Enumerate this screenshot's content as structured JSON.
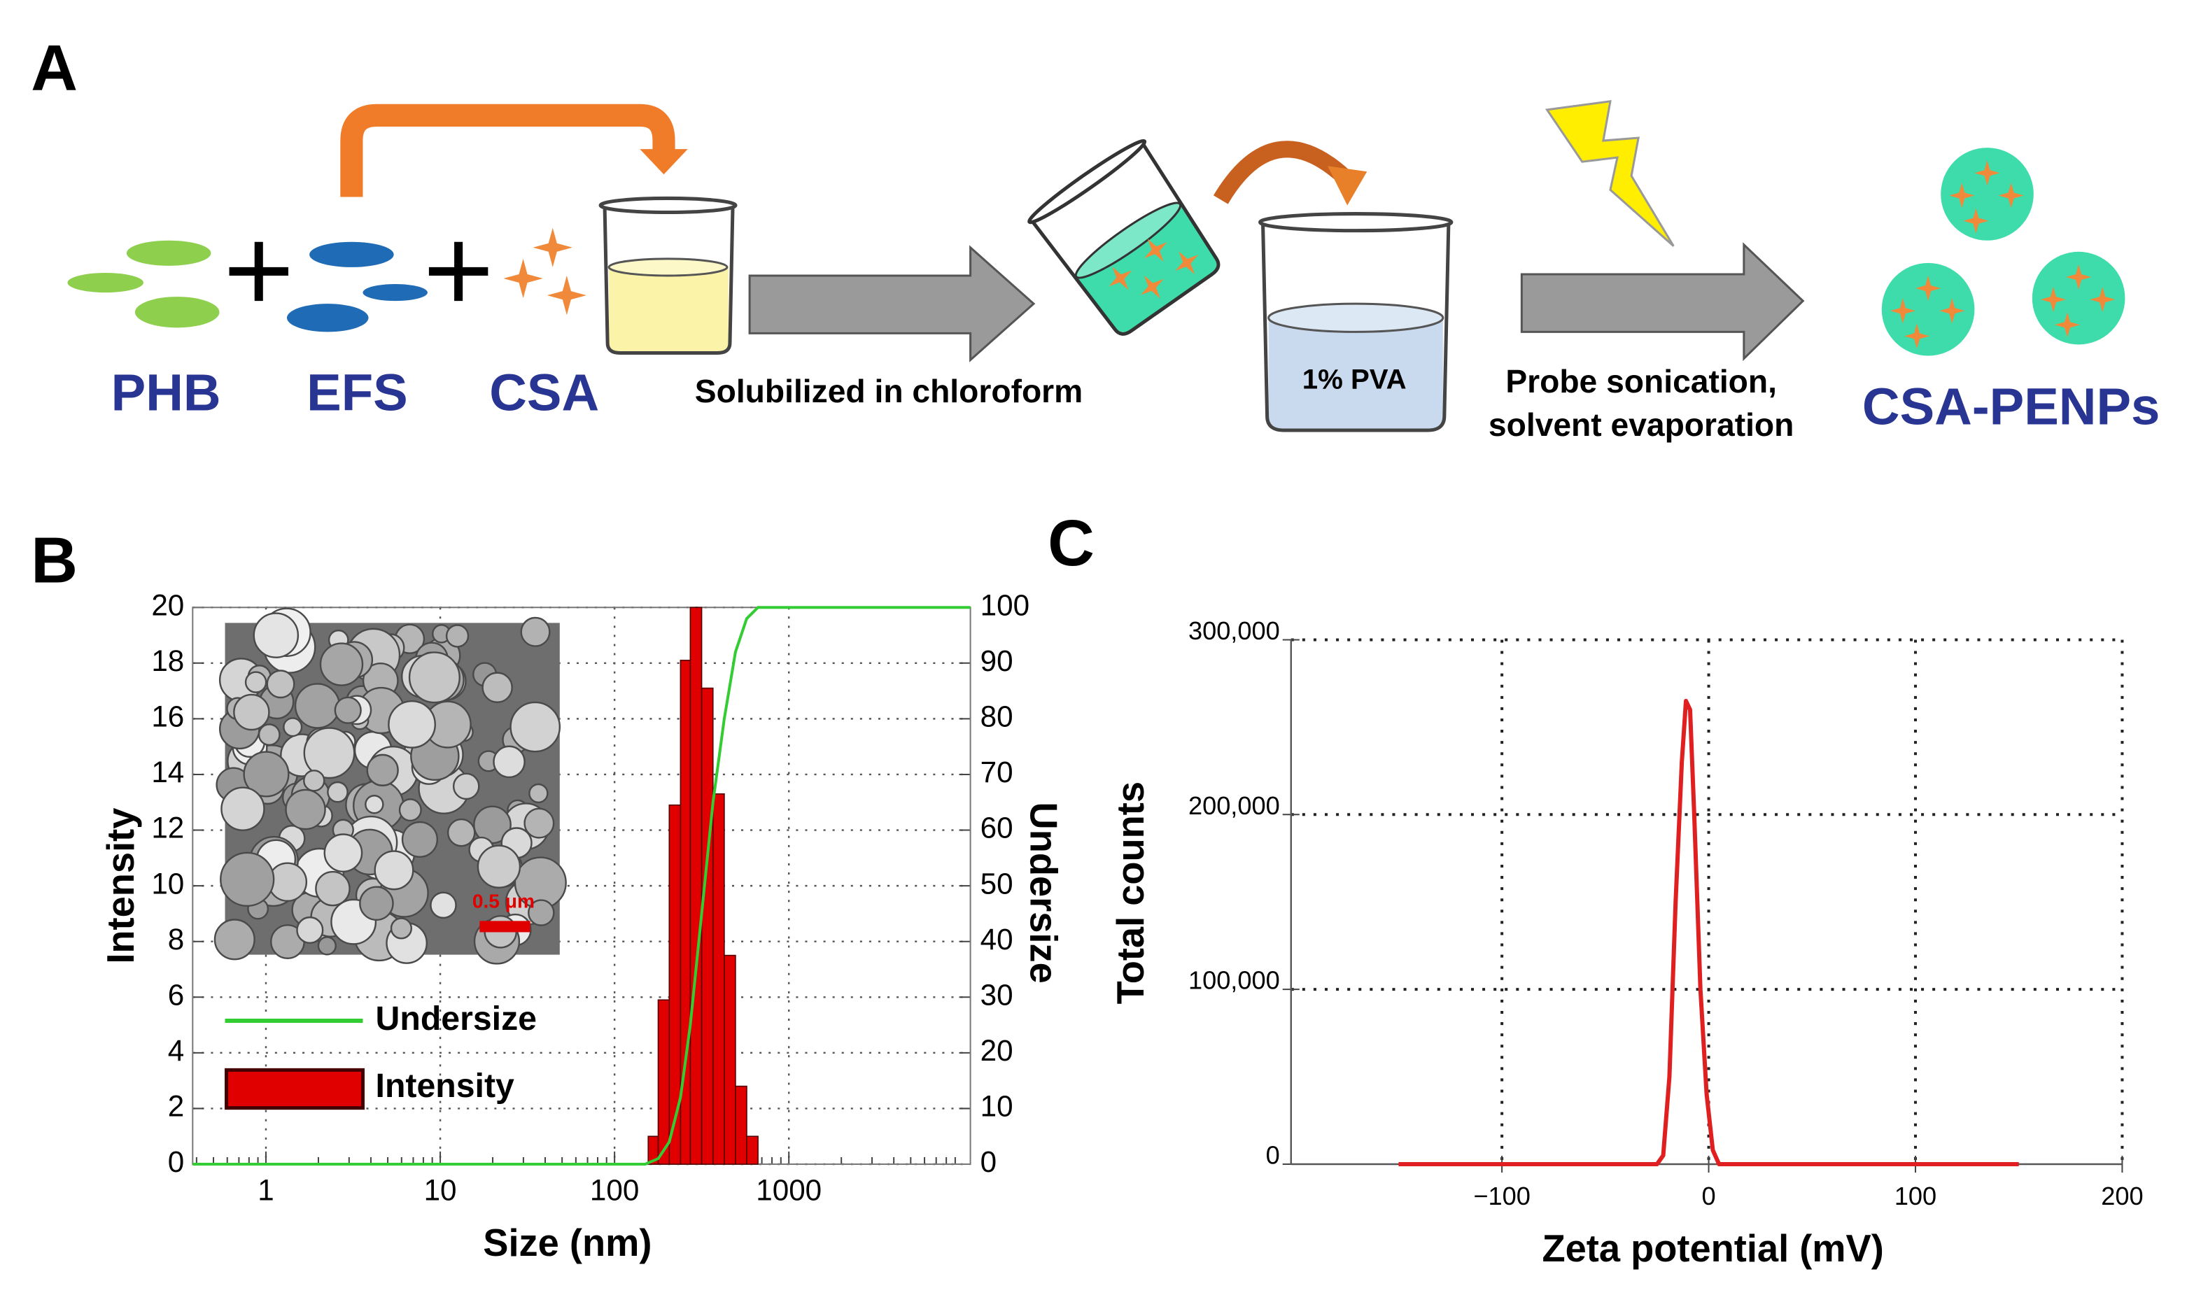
{
  "diagram": {
    "panel": "A",
    "ingredients": [
      "PHB",
      "EFS",
      "CSA"
    ],
    "step1": "Solubilized in chloroform",
    "beaker_label": "1% PVA",
    "step2": [
      "Probe sonication,",
      "solvent evaporation"
    ],
    "product": "CSA-PENPs"
  },
  "chart_data": [
    {
      "type": "histogram",
      "panel": "B",
      "xlabel": "Size (nm)",
      "ylabel": "Intensity",
      "y2label": "Undersize",
      "xscale": "log",
      "xlim": [
        0.38,
        11000
      ],
      "xticks": [
        1,
        10,
        100,
        1000
      ],
      "ylim": [
        0,
        20
      ],
      "yticks": [
        0,
        2,
        4,
        6,
        8,
        10,
        12,
        14,
        16,
        18,
        20
      ],
      "y2lim": [
        0,
        100
      ],
      "y2ticks": [
        0,
        10,
        20,
        30,
        40,
        50,
        60,
        70,
        80,
        90,
        100
      ],
      "grid": true,
      "bins": [
        156,
        178,
        206,
        239,
        272,
        316,
        367,
        426,
        494,
        573,
        665
      ],
      "series": [
        {
          "name": "Intensity",
          "color": "#e00000",
          "values": [
            1.0,
            5.9,
            12.9,
            18.1,
            20,
            17.1,
            13.3,
            7.5,
            2.8,
            1.0
          ]
        },
        {
          "name": "Undersize",
          "type": "line",
          "axis": "y2",
          "color": "#33cc33",
          "x": [
            0.38,
            150,
            178,
            206,
            239,
            272,
            316,
            367,
            426,
            494,
            573,
            665,
            11000
          ],
          "values": [
            0,
            0,
            1,
            4,
            12,
            25,
            45,
            65,
            80,
            92,
            98,
            100,
            100
          ]
        }
      ],
      "inset": {
        "scale_bar_label": "0.5 μm"
      }
    },
    {
      "type": "line",
      "panel": "C",
      "xlabel": "Zeta potential (mV)",
      "ylabel": "Total counts",
      "xlim": [
        -202,
        200
      ],
      "xticks": [
        {
          "value": -100,
          "label": "−100"
        },
        0,
        100,
        200
      ],
      "ylim": [
        0,
        300000
      ],
      "yticks": [
        0,
        {
          "value": 100000,
          "label": "100,000"
        },
        {
          "value": 200000,
          "label": "200,000"
        },
        {
          "value": 300000,
          "label": "300,000"
        }
      ],
      "grid": true,
      "x": [
        -150,
        -25,
        -22,
        -19,
        -16,
        -13,
        -11,
        -9,
        -7,
        -4,
        -1,
        2,
        5,
        150
      ],
      "series": [
        {
          "color": "#e02020",
          "values": [
            0,
            0,
            5000,
            50000,
            150000,
            230000,
            265000,
            260000,
            200000,
            100000,
            40000,
            8000,
            0,
            0
          ]
        }
      ]
    }
  ]
}
